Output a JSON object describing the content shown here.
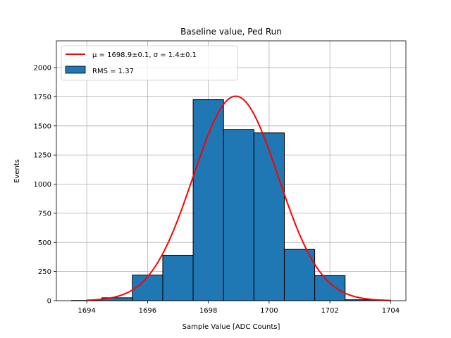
{
  "chart_data": {
    "type": "bar",
    "title": "Baseline value, Ped Run",
    "xlabel": "Sample Value [ADC Counts]",
    "ylabel": "Events",
    "xlim": [
      1693,
      1704.5
    ],
    "ylim": [
      0,
      2230
    ],
    "xticks": [
      1694,
      1696,
      1698,
      1700,
      1702,
      1704
    ],
    "yticks": [
      0,
      250,
      500,
      750,
      1000,
      1250,
      1500,
      1750,
      2000
    ],
    "grid": true,
    "legend_position": "upper-left",
    "histogram": {
      "name": "RMS = 1.37",
      "color": "#1f77b4",
      "edgecolor": "#000000",
      "bins": [
        {
          "left": 1693.5,
          "right": 1694.5,
          "value": 2
        },
        {
          "left": 1694.5,
          "right": 1695.5,
          "value": 25
        },
        {
          "left": 1695.5,
          "right": 1696.5,
          "value": 220
        },
        {
          "left": 1696.5,
          "right": 1697.5,
          "value": 390
        },
        {
          "left": 1697.5,
          "right": 1698.5,
          "value": 1725
        },
        {
          "left": 1698.5,
          "right": 1699.5,
          "value": 1470
        },
        {
          "left": 1699.5,
          "right": 1700.5,
          "value": 1440
        },
        {
          "left": 1700.5,
          "right": 1701.5,
          "value": 440
        },
        {
          "left": 1701.5,
          "right": 1702.5,
          "value": 215
        },
        {
          "left": 1702.5,
          "right": 1703.5,
          "value": 8
        }
      ]
    },
    "fit": {
      "name": "μ = 1698.9±0.1, σ = 1.4±0.1",
      "color": "#ff0000",
      "type": "gaussian",
      "amplitude": 1755,
      "mu": 1698.9,
      "sigma": 1.4,
      "x_range": [
        1694,
        1704
      ]
    }
  }
}
